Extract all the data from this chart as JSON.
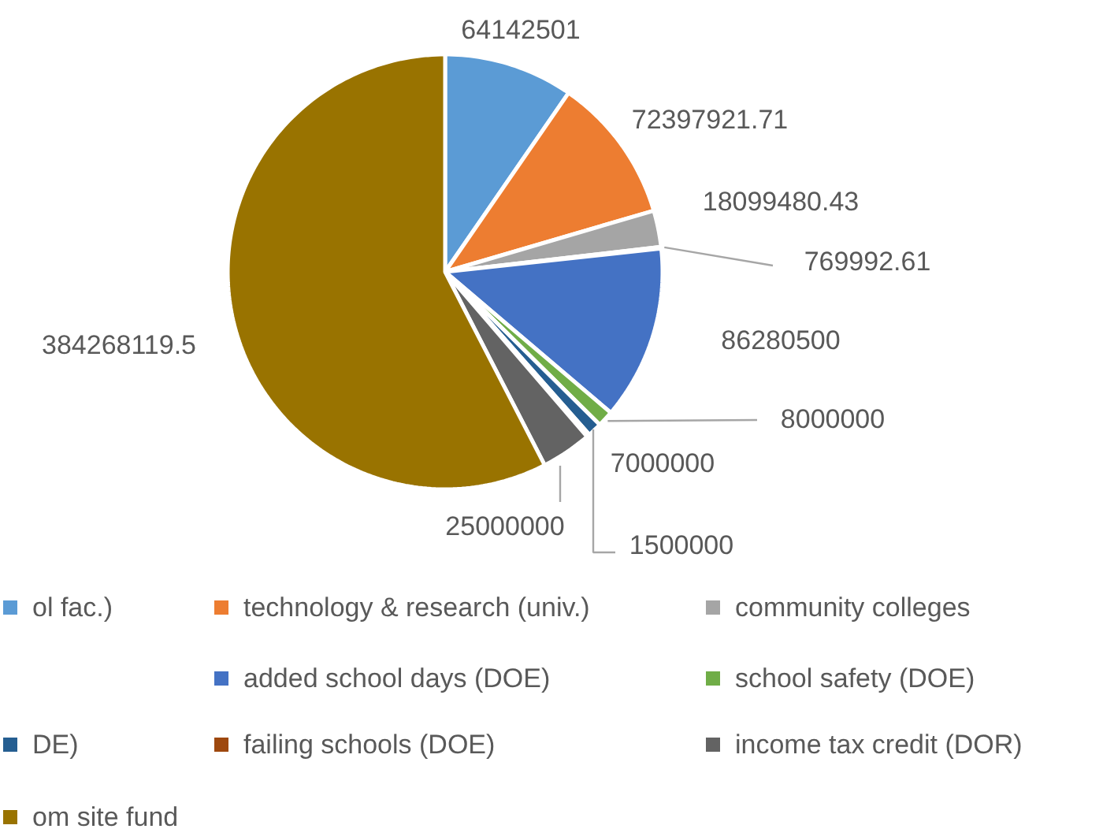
{
  "chart_data": {
    "type": "pie",
    "data_labels": true,
    "legend": "bottom",
    "categories": [
      "ol fac.)",
      "technology & research (univ.)",
      "community colleges",
      null,
      "added school days (DOE)",
      "school safety (DOE)",
      "DE)",
      "failing schools (DOE)",
      "income tax credit (DOR)",
      "om site fund"
    ],
    "values": [
      64142501,
      72397921.71,
      18099480.43,
      769992.61,
      86280500,
      8000000,
      7000000,
      1500000,
      25000000,
      384268119.5
    ],
    "colors": [
      "#5b9bd5",
      "#ed7d31",
      "#a5a5a5",
      "#ffc000",
      "#4472c4",
      "#70ad47",
      "#255e91",
      "#9e480e",
      "#636363",
      "#997300"
    ]
  }
}
